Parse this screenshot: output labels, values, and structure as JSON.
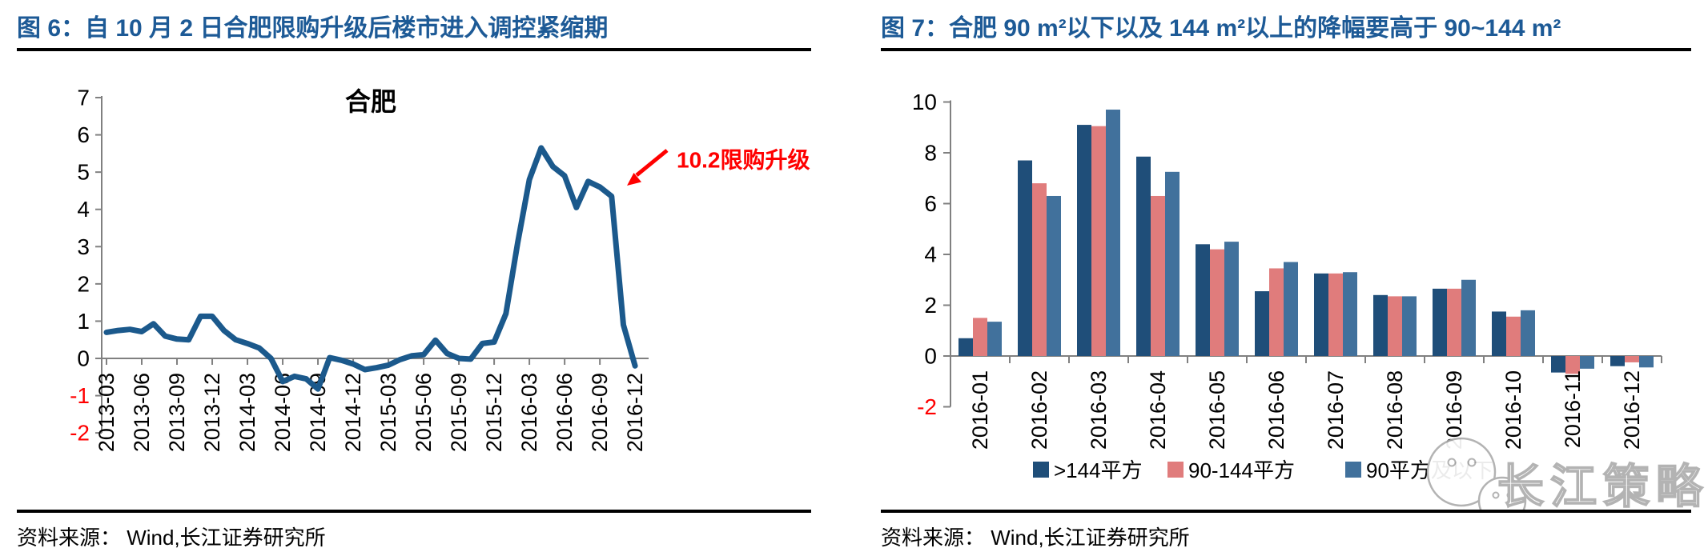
{
  "figure6": {
    "title": "图 6：自 10 月 2 日合肥限购升级后楼市进入调控紧缩期",
    "source": "资料来源： Wind,长江证券研究所"
  },
  "figure7": {
    "title": "图 7：合肥 90 m²以下以及 144 m²以上的降幅要高于 90~144 m²",
    "source": "资料来源： Wind,长江证券研究所"
  },
  "watermark": "长江策略",
  "colors": {
    "title_blue": "#1D5A96",
    "line_blue": "#1B598C",
    "navy": "#1F4E79",
    "salmon": "#E07C7C",
    "steel": "#41719C",
    "red": "#FF0000",
    "axis_gray": "#808080",
    "text_black": "#000000",
    "watermark_gray": "#ADADAD"
  },
  "chart_data": [
    {
      "type": "line",
      "title": "合肥",
      "annotation": {
        "text": "10.2限购升级"
      },
      "ylim": [
        -2,
        7
      ],
      "yticks": [
        7,
        6,
        5,
        4,
        3,
        2,
        1,
        0,
        -1,
        -2
      ],
      "x_tick_every": 3,
      "grid": false,
      "x": [
        "2013-03",
        "2013-04",
        "2013-05",
        "2013-06",
        "2013-07",
        "2013-08",
        "2013-09",
        "2013-10",
        "2013-11",
        "2013-12",
        "2014-01",
        "2014-02",
        "2014-03",
        "2014-04",
        "2014-05",
        "2014-06",
        "2014-07",
        "2014-08",
        "2014-09",
        "2014-10",
        "2014-11",
        "2014-12",
        "2015-01",
        "2015-02",
        "2015-03",
        "2015-04",
        "2015-05",
        "2015-06",
        "2015-07",
        "2015-08",
        "2015-09",
        "2015-10",
        "2015-11",
        "2015-12",
        "2016-01",
        "2016-02",
        "2016-03",
        "2016-04",
        "2016-05",
        "2016-06",
        "2016-07",
        "2016-08",
        "2016-09",
        "2016-10",
        "2016-11",
        "2016-12"
      ],
      "values": [
        0.7,
        0.75,
        0.78,
        0.72,
        0.93,
        0.6,
        0.52,
        0.5,
        1.13,
        1.13,
        0.75,
        0.5,
        0.4,
        0.28,
        0.0,
        -0.62,
        -0.48,
        -0.55,
        -0.82,
        0.02,
        -0.05,
        -0.15,
        -0.3,
        -0.25,
        -0.18,
        -0.03,
        0.07,
        0.1,
        0.49,
        0.13,
        0.0,
        -0.02,
        0.4,
        0.44,
        1.2,
        3.1,
        4.8,
        5.65,
        5.15,
        4.9,
        4.05,
        4.75,
        4.6,
        4.35,
        0.9,
        -0.2
      ]
    },
    {
      "type": "bar",
      "categories": [
        "2016-01",
        "2016-02",
        "2016-03",
        "2016-04",
        "2016-05",
        "2016-06",
        "2016-07",
        "2016-08",
        "2016-09",
        "2016-10",
        "2016-11",
        "2016-12"
      ],
      "series": [
        {
          "name": ">144平方",
          "color_key": "navy",
          "values": [
            0.7,
            7.7,
            9.1,
            7.85,
            4.4,
            2.55,
            3.25,
            2.4,
            2.65,
            1.75,
            -0.65,
            -0.4
          ]
        },
        {
          "name": "90-144平方",
          "color_key": "salmon",
          "values": [
            1.5,
            6.8,
            9.05,
            6.3,
            4.2,
            3.45,
            3.25,
            2.35,
            2.65,
            1.55,
            -0.7,
            -0.25
          ]
        },
        {
          "name": "90平方及以下",
          "color_key": "steel",
          "values": [
            1.35,
            6.3,
            9.7,
            7.25,
            4.5,
            3.7,
            3.3,
            2.35,
            3.0,
            1.8,
            -0.5,
            -0.45
          ]
        }
      ],
      "ylim": [
        -2,
        10
      ],
      "yticks": [
        10,
        8,
        6,
        4,
        2,
        0,
        -2
      ],
      "grid": false,
      "legend_position": "bottom"
    }
  ]
}
